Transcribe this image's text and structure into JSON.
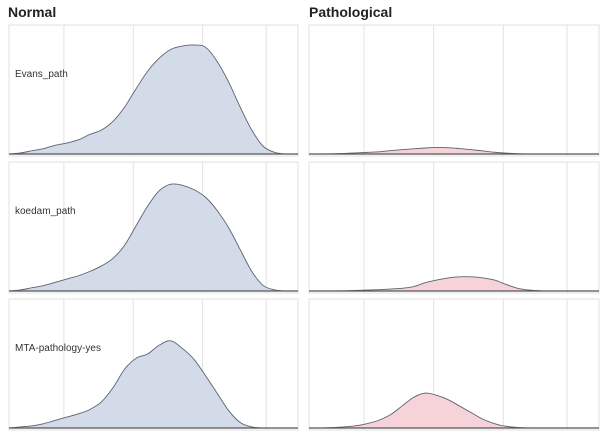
{
  "colors": {
    "normal_fill": "#d3dae8",
    "pathological_fill": "#f6d3d9",
    "outline": "#5c6370",
    "grid": "#e3e3e3",
    "background": "#ffffff"
  },
  "chart_data": {
    "type": "area",
    "subtype": "ridgeline-density-grid",
    "grid": true,
    "legend": "none",
    "columns": [
      "Normal",
      "Pathological"
    ],
    "rows": [
      "Evans_path",
      "koedam_path",
      "MTA-pathology-yes"
    ],
    "xlim": [
      0,
      1
    ],
    "x_gridlines": [
      0.19,
      0.43,
      0.67,
      0.89
    ],
    "x": [
      0,
      0.04,
      0.08,
      0.12,
      0.16,
      0.2,
      0.24,
      0.28,
      0.32,
      0.36,
      0.4,
      0.44,
      0.48,
      0.52,
      0.56,
      0.6,
      0.64,
      0.68,
      0.72,
      0.76,
      0.8,
      0.84,
      0.88,
      0.92,
      0.96,
      1
    ],
    "ylim": [
      0,
      1
    ],
    "panels": [
      {
        "column": "Normal",
        "row": "Evans_path",
        "values": [
          0,
          0.01,
          0.03,
          0.05,
          0.08,
          0.1,
          0.13,
          0.18,
          0.22,
          0.3,
          0.43,
          0.6,
          0.76,
          0.88,
          0.96,
          0.99,
          1,
          0.98,
          0.85,
          0.66,
          0.43,
          0.22,
          0.07,
          0.015,
          0,
          0
        ]
      },
      {
        "column": "Normal",
        "row": "koedam_path",
        "values": [
          0,
          0.01,
          0.03,
          0.05,
          0.08,
          0.11,
          0.14,
          0.18,
          0.23,
          0.3,
          0.42,
          0.6,
          0.78,
          0.92,
          0.98,
          0.97,
          0.93,
          0.86,
          0.74,
          0.58,
          0.38,
          0.18,
          0.05,
          0.01,
          0,
          0
        ]
      },
      {
        "column": "Normal",
        "row": "MTA-pathology-yes",
        "values": [
          0,
          0.01,
          0.02,
          0.04,
          0.07,
          0.1,
          0.13,
          0.17,
          0.24,
          0.37,
          0.54,
          0.64,
          0.68,
          0.76,
          0.8,
          0.73,
          0.63,
          0.48,
          0.32,
          0.16,
          0.05,
          0.01,
          0,
          0,
          0,
          0
        ]
      },
      {
        "column": "Pathological",
        "row": "Evans_path",
        "values": [
          0,
          0,
          0.002,
          0.005,
          0.01,
          0.015,
          0.02,
          0.03,
          0.04,
          0.048,
          0.055,
          0.06,
          0.058,
          0.05,
          0.04,
          0.028,
          0.016,
          0.008,
          0.003,
          0,
          0,
          0,
          0,
          0,
          0,
          0
        ]
      },
      {
        "column": "Pathological",
        "row": "koedam_path",
        "values": [
          0,
          0,
          0,
          0.002,
          0.005,
          0.008,
          0.012,
          0.018,
          0.025,
          0.04,
          0.075,
          0.1,
          0.12,
          0.13,
          0.13,
          0.12,
          0.1,
          0.06,
          0.025,
          0.008,
          0.002,
          0,
          0,
          0,
          0,
          0
        ]
      },
      {
        "column": "Pathological",
        "row": "MTA-pathology-yes",
        "values": [
          0,
          0,
          0.004,
          0.01,
          0.02,
          0.04,
          0.07,
          0.12,
          0.2,
          0.28,
          0.32,
          0.3,
          0.26,
          0.2,
          0.14,
          0.08,
          0.04,
          0.015,
          0.005,
          0,
          0,
          0,
          0,
          0,
          0,
          0
        ]
      }
    ]
  }
}
